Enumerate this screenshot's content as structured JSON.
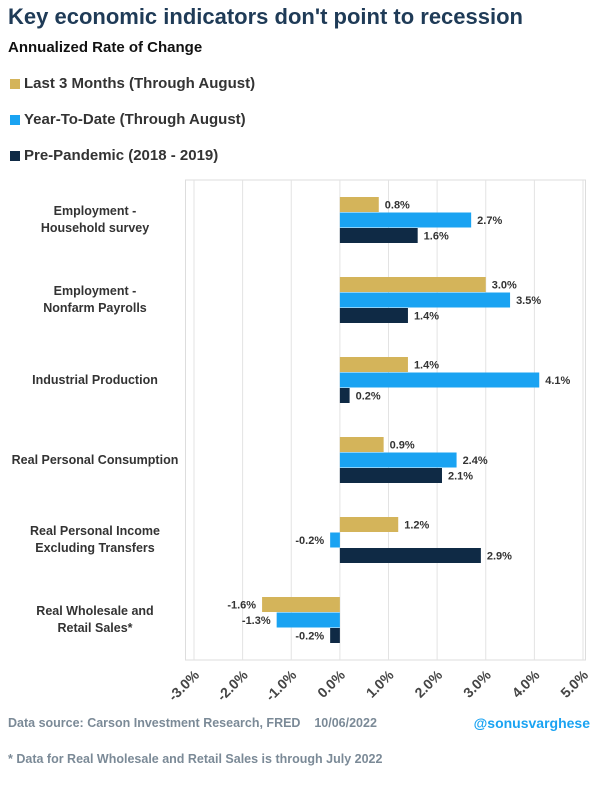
{
  "chart_data": {
    "type": "bar",
    "orientation": "horizontal",
    "title": "Key economic indicators don't point to recession",
    "subtitle": "Annualized Rate of Change",
    "categories": [
      "Employment -\nHousehold survey",
      "Employment -\nNonfarm Payrolls",
      "Industrial Production",
      "Real Personal Consumption",
      "Real Personal Income\nExcluding Transfers",
      "Real Wholesale and\nRetail Sales*"
    ],
    "series": [
      {
        "name": "Last 3 Months (Through August)",
        "color": "#d4b45a",
        "values": [
          0.8,
          3.0,
          1.4,
          0.9,
          1.2,
          -1.6
        ],
        "value_labels": [
          "0.8%",
          "3.0%",
          "1.4%",
          "0.9%",
          "1.2%",
          "-1.6%"
        ]
      },
      {
        "name": "Year-To-Date (Through August)",
        "color": "#1aa3f2",
        "values": [
          2.7,
          3.5,
          4.1,
          2.4,
          -0.2,
          -1.3
        ],
        "value_labels": [
          "2.7%",
          "3.5%",
          "4.1%",
          "2.4%",
          "-0.2%",
          "-1.3%"
        ]
      },
      {
        "name": "Pre-Pandemic (2018 - 2019)",
        "color": "#0f2a45",
        "values": [
          1.6,
          1.4,
          0.2,
          2.1,
          2.9,
          -0.2
        ],
        "value_labels": [
          "1.6%",
          "1.4%",
          "0.2%",
          "2.1%",
          "2.9%",
          "-0.2%"
        ]
      }
    ],
    "xlim": [
      -3,
      5
    ],
    "xticks": [
      {
        "value": -3,
        "label": "-3.0%"
      },
      {
        "value": -2,
        "label": "-2.0%"
      },
      {
        "value": -1,
        "label": "-1.0%"
      },
      {
        "value": 0,
        "label": "0.0%"
      },
      {
        "value": 1,
        "label": "1.0%"
      },
      {
        "value": 2,
        "label": "2.0%"
      },
      {
        "value": 3,
        "label": "3.0%"
      },
      {
        "value": 4,
        "label": "4.0%"
      },
      {
        "value": 5,
        "label": "5.0%"
      }
    ],
    "grid": true,
    "source": "Data source: Carson Investment Research, FRED    10/06/2022",
    "credit": "@sonusvarghese",
    "footnote": "* Data for Real Wholesale and Retail Sales is through July 2022"
  }
}
